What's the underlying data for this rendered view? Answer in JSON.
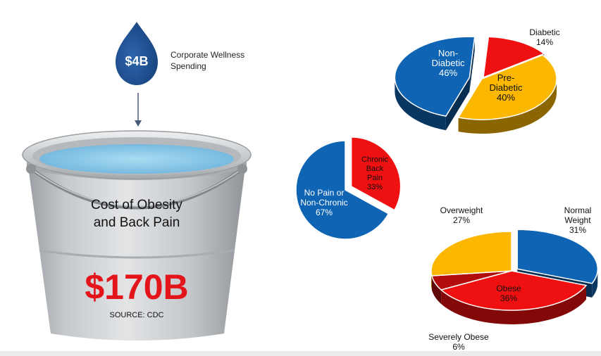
{
  "colors": {
    "blue": "#0f64b3",
    "blue_dark": "#0a3e74",
    "red": "#ef1111",
    "red_dark": "#8e0707",
    "gold": "#fcb700",
    "gold_dark": "#8d6a0a",
    "drop": "#1d4f93",
    "water": "#86c6e6",
    "bucket": "#c9ccd0",
    "price_red": "#e4141b"
  },
  "drop": {
    "amount": "$4B",
    "caption_line1": "Corporate Wellness",
    "caption_line2": "Spending"
  },
  "bucket": {
    "title_line1": "Cost of Obesity",
    "title_line2": "and Back Pain",
    "amount": "$170B",
    "source": "SOURCE: CDC"
  },
  "chart_data": [
    {
      "type": "pie",
      "style": "3d",
      "slices": [
        {
          "label_lines": [
            "Diabetic",
            "14%"
          ],
          "value": 14,
          "color": "#ef1111"
        },
        {
          "label_lines": [
            "Pre-",
            "Diabetic",
            "40%"
          ],
          "value": 40,
          "color": "#fcb700"
        },
        {
          "label_lines": [
            "Non-",
            "Diabetic",
            "46%"
          ],
          "value": 46,
          "color": "#0f64b3"
        }
      ]
    },
    {
      "type": "pie",
      "style": "2d",
      "slices": [
        {
          "label_lines": [
            "Chronic",
            "Back",
            "Pain",
            "33%"
          ],
          "value": 33,
          "color": "#ef1111"
        },
        {
          "label_lines": [
            "No Pain or",
            "Non-Chronic",
            "67%"
          ],
          "value": 67,
          "color": "#0f64b3"
        }
      ]
    },
    {
      "type": "pie",
      "style": "3d",
      "slices": [
        {
          "label_lines": [
            "Normal",
            "Weight",
            "31%"
          ],
          "value": 31,
          "color": "#0f64b3"
        },
        {
          "label_lines": [
            "Obese",
            "36%"
          ],
          "value": 36,
          "color": "#ef1111"
        },
        {
          "label_lines": [
            "Severely Obese",
            "6%"
          ],
          "value": 6,
          "color": "#b30c0c"
        },
        {
          "label_lines": [
            "Overweight",
            "27%"
          ],
          "value": 27,
          "color": "#fcb700"
        }
      ]
    }
  ]
}
